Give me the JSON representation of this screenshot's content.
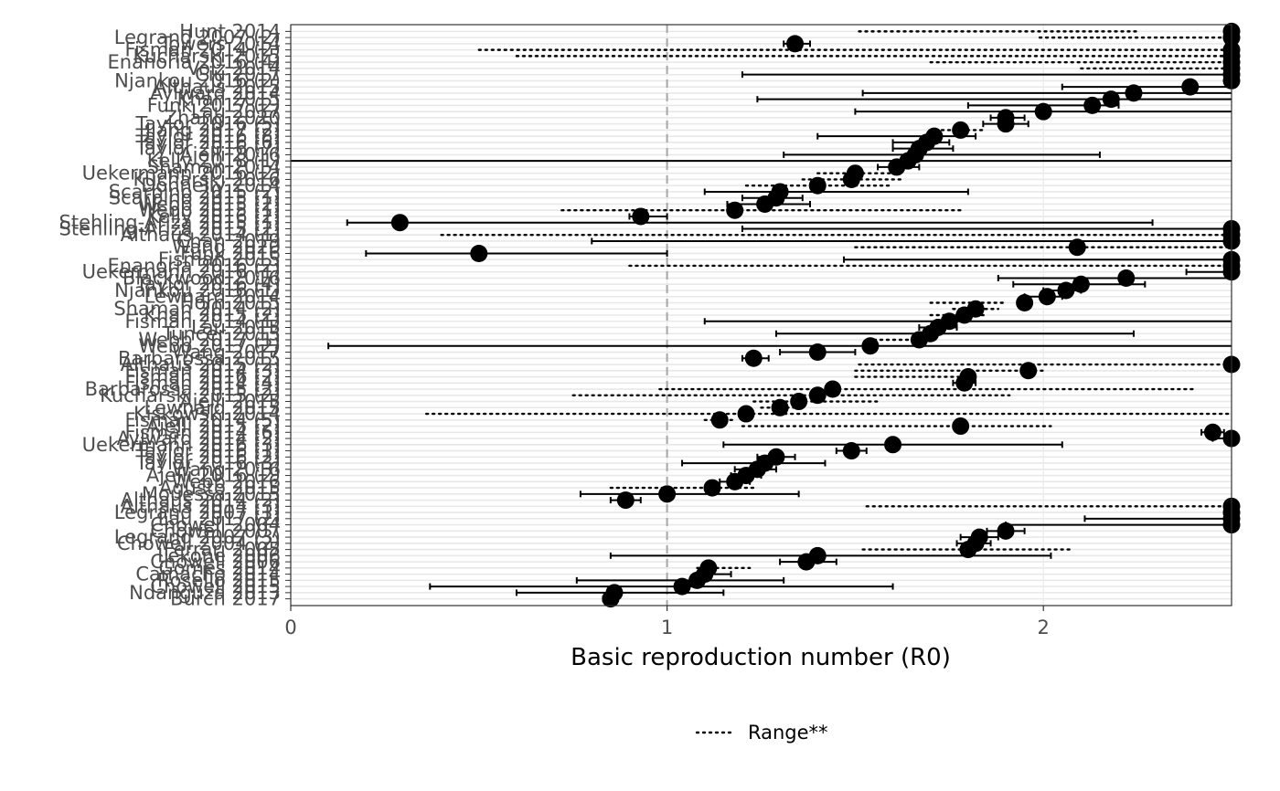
{
  "chart_data": {
    "type": "scatter",
    "subtype": "forest-plot",
    "title": "",
    "xlabel": "Basic reproduction number (R0)",
    "ylabel": "",
    "xlim": [
      0,
      2.5
    ],
    "xticks": [
      0,
      1,
      2
    ],
    "reference_line": {
      "x": 1,
      "style": "dashed",
      "color": "#a6a6a6"
    },
    "grid": "horizontal-minor",
    "legend": {
      "position": "bottom",
      "entries": [
        {
          "label": "Range**",
          "linetype": "dotted"
        }
      ]
    },
    "colors": {
      "points": "#000000",
      "axis_text": "#4d4d4d",
      "panel_border": "#333333",
      "grid": "#e8e8e8",
      "refline": "#a6a6a6"
    },
    "studies": [
      {
        "label": "Hunt 2014",
        "r0": 2.5,
        "low": 1.51,
        "high": 2.25,
        "kind": "range"
      },
      {
        "label": "Legrand 2007 (2)",
        "r0": 2.5,
        "low": 1.99,
        "high": 2.5,
        "kind": "range"
      },
      {
        "label": "Towers 2014",
        "r0": 1.34,
        "low": 1.31,
        "high": 1.38,
        "kind": "ci"
      },
      {
        "label": "Fisman 2014 (2)",
        "r0": 2.5,
        "low": 0.5,
        "high": 2.5,
        "kind": "range"
      },
      {
        "label": "Kucharski 2015",
        "r0": 2.5,
        "low": 0.6,
        "high": 2.5,
        "kind": "range"
      },
      {
        "label": "Enanoria 2016 (4)",
        "r0": 2.5,
        "low": 1.7,
        "high": 2.5,
        "kind": "range"
      },
      {
        "label": "Volz 2014",
        "r0": 2.5,
        "low": 2.1,
        "high": 2.5,
        "kind": "range"
      },
      {
        "label": "Ciu 2017",
        "r0": 2.5,
        "low": 1.2,
        "high": 2.5,
        "kind": "ci"
      },
      {
        "label": "Njankou 2016 (2)",
        "r0": 2.5,
        "low": 2.5,
        "high": 2.5,
        "kind": "ci"
      },
      {
        "label": "Althaus 2015",
        "r0": 2.39,
        "low": 2.05,
        "high": 2.5,
        "kind": "ci"
      },
      {
        "label": "Aylward 2014",
        "r0": 2.24,
        "low": 1.52,
        "high": 2.5,
        "kind": "ci"
      },
      {
        "label": "Khan 2015",
        "r0": 2.18,
        "low": 1.24,
        "high": 2.5,
        "kind": "ci"
      },
      {
        "label": "Funk 2017 (2)",
        "r0": 2.13,
        "low": 1.8,
        "high": 2.2,
        "kind": "ci"
      },
      {
        "label": "Lau 2017",
        "r0": 2.0,
        "low": 1.5,
        "high": 2.5,
        "kind": "ci"
      },
      {
        "label": "Zhang 2020",
        "r0": 1.9,
        "low": 1.86,
        "high": 1.95,
        "kind": "ci"
      },
      {
        "label": "Taylor 2016 (5)",
        "r0": 1.9,
        "low": 1.84,
        "high": 1.96,
        "kind": "ci"
      },
      {
        "label": "Jiang 2017 (2)",
        "r0": 1.78,
        "low": 1.73,
        "high": 1.84,
        "kind": "range"
      },
      {
        "label": "Taylor 2016 (8)",
        "r0": 1.71,
        "low": 1.4,
        "high": 1.82,
        "kind": "ci"
      },
      {
        "label": "Taylor 2016 (6)",
        "r0": 1.69,
        "low": 1.6,
        "high": 1.75,
        "kind": "ci"
      },
      {
        "label": "Taylor 2016 (7)",
        "r0": 1.67,
        "low": 1.6,
        "high": 1.76,
        "kind": "ci"
      },
      {
        "label": "Ajelli 2016",
        "r0": 1.66,
        "low": 1.31,
        "high": 2.15,
        "kind": "ci"
      },
      {
        "label": "Kelly 2018 (1)",
        "r0": 1.64,
        "low": 0.0,
        "high": 2.5,
        "kind": "ci"
      },
      {
        "label": "Shaman 2014",
        "r0": 1.61,
        "low": 1.56,
        "high": 1.67,
        "kind": "ci"
      },
      {
        "label": "Uekermann 2016 (2)",
        "r0": 1.5,
        "low": 1.4,
        "high": 1.6,
        "kind": "range"
      },
      {
        "label": "Kucharski 2016",
        "r0": 1.49,
        "low": 1.36,
        "high": 1.62,
        "kind": "range"
      },
      {
        "label": "Donnelly 2014",
        "r0": 1.4,
        "low": 1.21,
        "high": 1.6,
        "kind": "range"
      },
      {
        "label": "Scarpino 2015 (2)",
        "r0": 1.3,
        "low": 1.1,
        "high": 1.8,
        "kind": "ci"
      },
      {
        "label": "Scarpino 2015 (1)",
        "r0": 1.29,
        "low": 1.2,
        "high": 1.36,
        "kind": "ci"
      },
      {
        "label": "Webb 2015 (2)",
        "r0": 1.26,
        "low": 1.16,
        "high": 1.38,
        "kind": "ci"
      },
      {
        "label": "Webb 2015 (1)",
        "r0": 1.18,
        "low": 0.72,
        "high": 1.78,
        "kind": "range"
      },
      {
        "label": "Kelly 2016 (2)",
        "r0": 0.93,
        "low": 0.9,
        "high": 1.0,
        "kind": "ci"
      },
      {
        "label": "Stehling-Ariza 2015 (1)",
        "r0": 0.29,
        "low": 0.15,
        "high": 2.29,
        "kind": "ci"
      },
      {
        "label": "Stehling-Ariza 2015 (2)",
        "r0": 2.5,
        "low": 1.2,
        "high": 2.5,
        "kind": "ci"
      },
      {
        "label": "Althaus 2014 (1)",
        "r0": 2.5,
        "low": 0.4,
        "high": 2.5,
        "kind": "range"
      },
      {
        "label": "Chan 2019",
        "r0": 2.5,
        "low": 0.8,
        "high": 2.5,
        "kind": "ci"
      },
      {
        "label": "Wang 2020",
        "r0": 2.09,
        "low": 1.5,
        "high": 2.5,
        "kind": "range"
      },
      {
        "label": "Funk 2016",
        "r0": 0.5,
        "low": 0.2,
        "high": 1.0,
        "kind": "ci"
      },
      {
        "label": "Fisman 2015",
        "r0": 2.5,
        "low": 1.47,
        "high": 2.5,
        "kind": "ci"
      },
      {
        "label": "Enanoria 2016 (2)",
        "r0": 2.5,
        "low": 0.9,
        "high": 2.5,
        "kind": "range"
      },
      {
        "label": "Uekermann 2016 (1)",
        "r0": 2.5,
        "low": 2.38,
        "high": 2.5,
        "kind": "ci"
      },
      {
        "label": "Blackwood 2016",
        "r0": 2.22,
        "low": 1.88,
        "high": 2.5,
        "kind": "ci"
      },
      {
        "label": "Taylor 2016 (4)",
        "r0": 2.1,
        "low": 1.92,
        "high": 2.27,
        "kind": "ci"
      },
      {
        "label": "Njankou 2016 (1)",
        "r0": 2.06,
        "low": 2.0,
        "high": 2.1,
        "kind": "ci"
      },
      {
        "label": "Lewnard 2014",
        "r0": 2.01,
        "low": 1.95,
        "high": 2.05,
        "kind": "ci"
      },
      {
        "label": "Horn 2015",
        "r0": 1.95,
        "low": 1.7,
        "high": 1.9,
        "kind": "range"
      },
      {
        "label": "Shaman 2014 (2)",
        "r0": 1.82,
        "low": 1.76,
        "high": 1.88,
        "kind": "range"
      },
      {
        "label": "Khan 2015 (2)",
        "r0": 1.79,
        "low": 1.7,
        "high": 1.85,
        "kind": "range"
      },
      {
        "label": "Fisman 2014 (1)",
        "r0": 1.75,
        "low": 1.1,
        "high": 2.5,
        "kind": "ci"
      },
      {
        "label": "Lau 2015",
        "r0": 1.72,
        "low": 1.67,
        "high": 1.77,
        "kind": "ci"
      },
      {
        "label": "Tuncer 2015",
        "r0": 1.7,
        "low": 1.29,
        "high": 2.24,
        "kind": "ci"
      },
      {
        "label": "Webb 2017 (1)",
        "r0": 1.67,
        "low": 1.55,
        "high": 1.65,
        "kind": "range"
      },
      {
        "label": "Webb 2017 (2)",
        "r0": 1.54,
        "low": 0.1,
        "high": 2.5,
        "kind": "ci"
      },
      {
        "label": "Wang 2017",
        "r0": 1.4,
        "low": 1.3,
        "high": 1.5,
        "kind": "ci"
      },
      {
        "label": "Barbarossa 2015",
        "r0": 1.23,
        "low": 1.2,
        "high": 1.27,
        "kind": "ci"
      },
      {
        "label": "Althaus 2015 (2)",
        "r0": 2.5,
        "low": 1.51,
        "high": 2.5,
        "kind": "range"
      },
      {
        "label": "Fisman 2014 (3)",
        "r0": 1.96,
        "low": 1.5,
        "high": 2.0,
        "kind": "range"
      },
      {
        "label": "Fisman 2016 (2)",
        "r0": 1.8,
        "low": 1.5,
        "high": 1.82,
        "kind": "range"
      },
      {
        "label": "Fisman 2014 (4)",
        "r0": 1.79,
        "low": 1.76,
        "high": 1.82,
        "kind": "ci"
      },
      {
        "label": "Barbarossa 2015 (2)",
        "r0": 1.44,
        "low": 0.98,
        "high": 2.4,
        "kind": "range"
      },
      {
        "label": "Kucharski 2015 (2)",
        "r0": 1.4,
        "low": 0.75,
        "high": 1.91,
        "kind": "range"
      },
      {
        "label": "Ajelli 2015",
        "r0": 1.35,
        "low": 1.23,
        "high": 1.57,
        "kind": "range"
      },
      {
        "label": "Lewnard 2015",
        "r0": 1.3,
        "low": 1.25,
        "high": 1.35,
        "kind": "range"
      },
      {
        "label": "Kiskowski 2014",
        "r0": 1.21,
        "low": 0.36,
        "high": 2.5,
        "kind": "range"
      },
      {
        "label": "Fisman 2014 (5)",
        "r0": 1.14,
        "low": 1.1,
        "high": 1.18,
        "kind": "range"
      },
      {
        "label": "Ajelli 2015 (2)",
        "r0": 1.78,
        "low": 1.2,
        "high": 2.02,
        "kind": "range"
      },
      {
        "label": "Fisman 2014 (6)",
        "r0": 2.45,
        "low": 2.42,
        "high": 2.48,
        "kind": "ci"
      },
      {
        "label": "Aylward 2014 (2)",
        "r0": 2.5,
        "low": 2.45,
        "high": 2.5,
        "kind": "ci"
      },
      {
        "label": "Uekermann 2016 (3)",
        "r0": 1.6,
        "low": 1.15,
        "high": 2.05,
        "kind": "ci"
      },
      {
        "label": "Taylor 2016 (1)",
        "r0": 1.49,
        "low": 1.45,
        "high": 1.53,
        "kind": "ci"
      },
      {
        "label": "Taylor 2016 (2)",
        "r0": 1.29,
        "low": 1.24,
        "high": 1.34,
        "kind": "ci"
      },
      {
        "label": "Taylor 2016 (3)",
        "r0": 1.26,
        "low": 1.04,
        "high": 1.42,
        "kind": "ci"
      },
      {
        "label": "Wang 2016",
        "r0": 1.24,
        "low": 1.18,
        "high": 1.29,
        "kind": "ci"
      },
      {
        "label": "Ajelli 2016 (2)",
        "r0": 1.21,
        "low": 1.17,
        "high": 1.25,
        "kind": "ci"
      },
      {
        "label": "Webb 2016",
        "r0": 1.18,
        "low": 1.14,
        "high": 1.22,
        "kind": "ci"
      },
      {
        "label": "Agusto 2015",
        "r0": 1.12,
        "low": 0.85,
        "high": 1.23,
        "kind": "range"
      },
      {
        "label": "Mouessa 2015",
        "r0": 1.0,
        "low": 0.77,
        "high": 1.35,
        "kind": "ci"
      },
      {
        "label": "Althaus 2014 (2)",
        "r0": 0.89,
        "low": 0.85,
        "high": 0.93,
        "kind": "ci"
      },
      {
        "label": "Althaus 2014 (3)",
        "r0": 2.5,
        "low": 1.53,
        "high": 2.5,
        "kind": "range"
      },
      {
        "label": "Legrand 2007 (1)",
        "r0": 2.5,
        "low": 2.5,
        "high": 2.5,
        "kind": "ci"
      },
      {
        "label": "Lau 2017 (2)",
        "r0": 2.5,
        "low": 2.11,
        "high": 2.5,
        "kind": "ci"
      },
      {
        "label": "Chowell 2004",
        "r0": 2.5,
        "low": 1.9,
        "high": 2.5,
        "kind": "ci"
      },
      {
        "label": "Chowell 2007",
        "r0": 1.9,
        "low": 1.85,
        "high": 1.95,
        "kind": "ci"
      },
      {
        "label": "Legrand 2007 (3)",
        "r0": 1.83,
        "low": 1.78,
        "high": 1.88,
        "kind": "ci"
      },
      {
        "label": "Chowell 2004 (2)",
        "r0": 1.82,
        "low": 1.77,
        "high": 1.86,
        "kind": "ci"
      },
      {
        "label": "Ferrari 2005",
        "r0": 1.8,
        "low": 1.52,
        "high": 2.08,
        "kind": "range"
      },
      {
        "label": "Lekone 2006",
        "r0": 1.4,
        "low": 0.85,
        "high": 2.02,
        "kind": "ci"
      },
      {
        "label": "Chowell 2006",
        "r0": 1.37,
        "low": 1.3,
        "high": 1.45,
        "kind": "ci"
      },
      {
        "label": "Gomes 2014",
        "r0": 1.11,
        "low": 1.08,
        "high": 1.22,
        "kind": "range"
      },
      {
        "label": "Camacho 2014",
        "r0": 1.1,
        "low": 1.08,
        "high": 1.17,
        "kind": "ci"
      },
      {
        "label": "Rosello 2015",
        "r0": 1.08,
        "low": 0.76,
        "high": 1.31,
        "kind": "ci"
      },
      {
        "label": "Chowell 2015",
        "r0": 1.04,
        "low": 0.37,
        "high": 1.6,
        "kind": "ci"
      },
      {
        "label": "Ndanguza 2013",
        "r0": 0.86,
        "low": 0.6,
        "high": 1.15,
        "kind": "ci"
      },
      {
        "label": "Burch 2017",
        "r0": 0.85,
        "low": 0.83,
        "high": 0.87,
        "kind": "ci"
      }
    ]
  }
}
